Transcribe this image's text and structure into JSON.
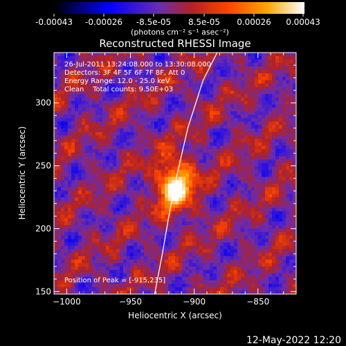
{
  "colorbar": {
    "ticks": [
      "-0.00043",
      "-0.00026",
      "-8.5e-05",
      "8.5e-05",
      "0.00026",
      "0.00043"
    ],
    "unit_label": "(photons cm⁻² s⁻¹ asec⁻²)"
  },
  "annotations": {
    "time_range": "26-Jul-2011 13:24:08.000 to 13:30:08.000",
    "detectors": "Detectors: 3F 4F 5F 6F 7F 8F, Att 0",
    "energy_range": "Energy Range: 12.0 - 25.0 keV",
    "method_counts": "Clean    Total counts: 9.50E+03",
    "peak_position": "Position of Peak = [-915,235]"
  },
  "footer": {
    "date": "12-May-2022 12:20"
  },
  "colors": {
    "limb_line": "#ffffff"
  },
  "chart_data": {
    "type": "heatmap",
    "title": "Reconstructed RHESSI Image",
    "xlabel": "Heliocentric X (arcsec)",
    "ylabel": "Heliocentric Y (arcsec)",
    "xlim": [
      -1010,
      -820
    ],
    "ylim": [
      148,
      340
    ],
    "x_ticks": [
      -1000,
      -950,
      -900,
      -850
    ],
    "y_ticks": [
      150,
      200,
      250,
      300
    ],
    "color_range": [
      -0.00043,
      0.00043
    ],
    "colormap": [
      "#000000",
      "#0000ff",
      "#6a2cb0",
      "#b22222",
      "#ff4500",
      "#ffa500",
      "#ffffff"
    ],
    "peak": [
      -915,
      235
    ],
    "limb_curve": [
      [
        -931,
        148
      ],
      [
        -925,
        180
      ],
      [
        -919,
        215
      ],
      [
        -913,
        245
      ],
      [
        -905,
        280
      ],
      [
        -893,
        318
      ],
      [
        -882,
        340
      ]
    ],
    "grid": false,
    "legend": "none"
  }
}
